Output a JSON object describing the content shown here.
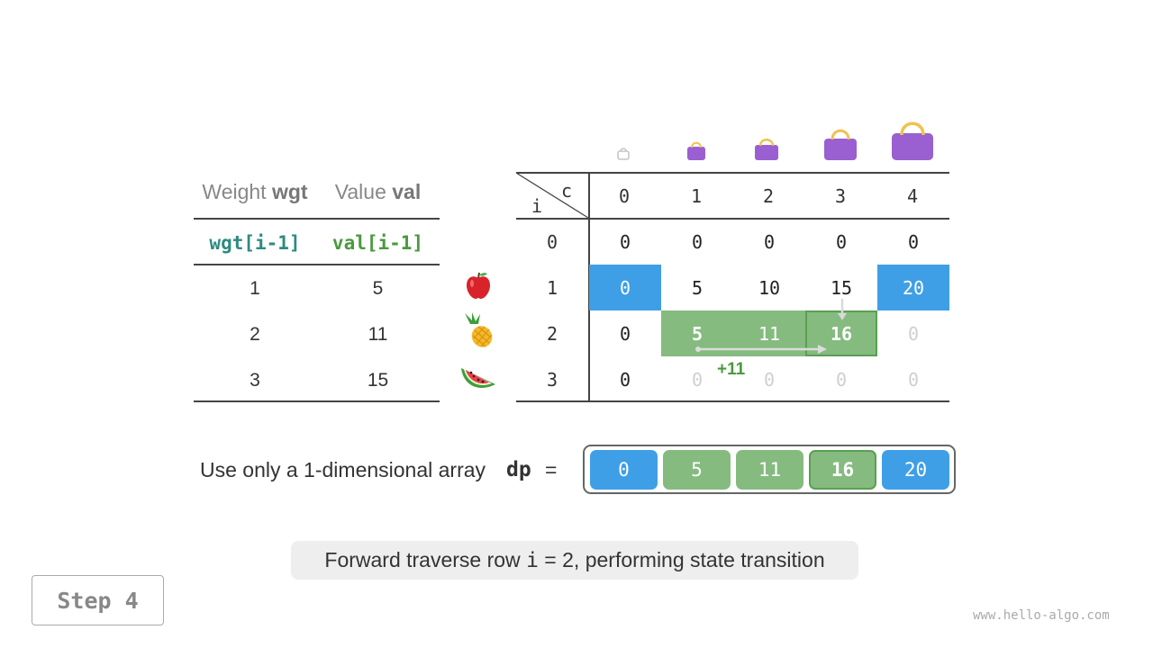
{
  "item_table": {
    "header_weight_prefix": "Weight ",
    "header_weight_bold": "wgt",
    "header_value_prefix": "Value ",
    "header_value_bold": "val",
    "expr_weight": "wgt[i-1]",
    "expr_value": "val[i-1]",
    "rows": [
      {
        "weight": "1",
        "value": "5",
        "icon": "apple-icon"
      },
      {
        "weight": "2",
        "value": "11",
        "icon": "pineapple-icon"
      },
      {
        "weight": "3",
        "value": "15",
        "icon": "watermelon-icon"
      }
    ]
  },
  "dp_table": {
    "corner_i": "i",
    "corner_c": "c",
    "col_headers": [
      "0",
      "1",
      "2",
      "3",
      "4"
    ],
    "row_headers": [
      "0",
      "1",
      "2",
      "3"
    ],
    "rows": [
      [
        "0",
        "0",
        "0",
        "0",
        "0"
      ],
      [
        "0",
        "5",
        "10",
        "15",
        "20"
      ],
      [
        "0",
        "5",
        "11",
        "16",
        "0"
      ],
      [
        "0",
        "0",
        "0",
        "0",
        "0"
      ]
    ],
    "transition_label": "+11",
    "bag_icons": [
      "bag-capacity-0-icon",
      "bag-capacity-1-icon",
      "bag-capacity-2-icon",
      "bag-capacity-3-icon",
      "bag-capacity-4-icon"
    ]
  },
  "array": {
    "label": "Use only a 1-dimensional array",
    "name": "dp",
    "equals": "=",
    "values": [
      "0",
      "5",
      "11",
      "16",
      "20"
    ]
  },
  "caption": {
    "text_before": "Forward traverse row ",
    "var": "i",
    "text_after": " = 2, performing state transition"
  },
  "step_label": "Step 4",
  "watermark": "www.hello-algo.com",
  "colors": {
    "blue": "#3e9fe7",
    "green": "#85bb7f",
    "green_border": "#5a9f54",
    "teal": "#2e8b80",
    "bag_purple": "#9a5fd0",
    "bag_handle": "#f2c14e"
  }
}
